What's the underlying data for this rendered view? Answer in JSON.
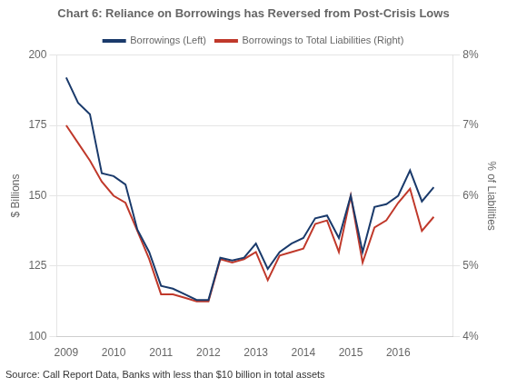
{
  "chart_data": {
    "type": "line",
    "title": "Chart 6: Reliance on Borrowings has Reversed from Post-Crisis Lows",
    "annotations": [
      "Source: Call Report Data, Banks with less than $10 billion in total assets"
    ],
    "ylabel": "$ Billions",
    "y2label": "% of Liabilities",
    "x": [
      2009.0,
      2009.25,
      2009.5,
      2009.75,
      2010.0,
      2010.25,
      2010.5,
      2010.75,
      2011.0,
      2011.25,
      2011.5,
      2011.75,
      2012.0,
      2012.25,
      2012.5,
      2012.75,
      2013.0,
      2013.25,
      2013.5,
      2013.75,
      2014.0,
      2014.25,
      2014.5,
      2014.75,
      2015.0,
      2015.25,
      2015.5,
      2015.75,
      2016.0,
      2016.25,
      2016.5,
      2016.75
    ],
    "series": [
      {
        "name": "Borrowings (Left)",
        "color": "#1a3a6b",
        "axis": "y",
        "values": [
          192,
          183,
          179,
          158,
          157,
          154,
          138,
          130,
          118,
          117,
          115,
          113,
          113,
          128,
          127,
          128,
          133,
          124,
          130,
          133,
          135,
          142,
          143,
          135,
          150,
          130,
          146,
          147,
          150,
          159,
          148,
          153
        ]
      },
      {
        "name": "Borrowings to Total Liabilities (Right)",
        "color": "#c0392b",
        "axis": "y2",
        "values": [
          7.0,
          6.75,
          6.5,
          6.2,
          6.0,
          5.9,
          5.5,
          5.1,
          4.6,
          4.6,
          4.55,
          4.5,
          4.5,
          5.1,
          5.05,
          5.1,
          5.2,
          4.8,
          5.15,
          5.2,
          5.25,
          5.6,
          5.65,
          5.2,
          6.0,
          5.05,
          5.55,
          5.65,
          5.9,
          6.1,
          5.5,
          5.7
        ]
      }
    ],
    "xlim": [
      2008.8,
      2017.15
    ],
    "xticks": [
      2009,
      2010,
      2011,
      2012,
      2013,
      2014,
      2015,
      2016
    ],
    "ylim": [
      100,
      200
    ],
    "yticks": [
      100,
      125,
      150,
      175,
      200
    ],
    "y2lim": [
      4,
      8
    ],
    "y2ticks": [
      {
        "value": 4,
        "label": "4%"
      },
      {
        "value": 5,
        "label": "5%"
      },
      {
        "value": 6,
        "label": "6%"
      },
      {
        "value": 7,
        "label": "7%"
      },
      {
        "value": 8,
        "label": "8%"
      }
    ],
    "grid": true,
    "legend": "top"
  }
}
